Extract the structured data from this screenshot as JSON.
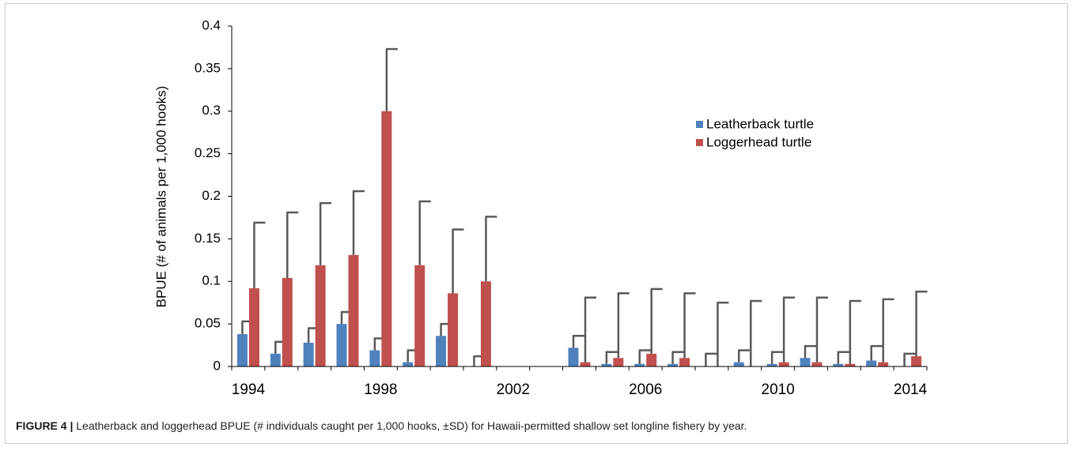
{
  "chart_data": {
    "type": "bar",
    "ylabel": "BPUE (# of animals per 1,000 hooks)",
    "categories": [
      "1994",
      null,
      null,
      null,
      "1998",
      null,
      null,
      null,
      "2002",
      null,
      null,
      null,
      "2006",
      null,
      null,
      null,
      "2010",
      null,
      null,
      null,
      "2014"
    ],
    "series": [
      {
        "name": "Leatherback turtle",
        "color": "#4f81bd",
        "values": [
          0.038,
          0.015,
          0.028,
          0.05,
          0.019,
          0.005,
          0.036,
          0,
          null,
          null,
          0.022,
          0.003,
          0.003,
          0.003,
          0,
          0.005,
          0.003,
          0.01,
          0.003,
          0.007,
          0
        ],
        "errors": [
          0.015,
          0.014,
          0.017,
          0.014,
          0.014,
          0.014,
          0.014,
          0.012,
          null,
          null,
          0.014,
          0.014,
          0.016,
          0.014,
          0.015,
          0.014,
          0.014,
          0.014,
          0.014,
          0.017,
          0.015
        ]
      },
      {
        "name": "Loggerhead turtle",
        "color": "#c0504d",
        "values": [
          0.092,
          0.104,
          0.119,
          0.131,
          0.3,
          0.119,
          0.086,
          0.1,
          null,
          null,
          0.005,
          0.01,
          0.015,
          0.01,
          0,
          0,
          0.005,
          0.005,
          0.003,
          0.005,
          0.012
        ],
        "errors": [
          0.077,
          0.077,
          0.073,
          0.075,
          0.073,
          0.075,
          0.075,
          0.076,
          null,
          null,
          0.076,
          0.076,
          0.076,
          0.076,
          0.075,
          0.077,
          0.076,
          0.076,
          0.074,
          0.074,
          0.076
        ]
      }
    ],
    "error_color": "#595959",
    "ylim": [
      0,
      0.4
    ],
    "yticks": [
      0,
      0.05,
      0.1,
      0.15,
      0.2,
      0.25,
      0.3,
      0.35,
      0.4
    ],
    "grid": false,
    "legend": "upper right"
  },
  "caption": {
    "label": "FIGURE 4 |",
    "text": "Leatherback and loggerhead BPUE (# individuals caught per 1,000 hooks, ±SD) for Hawaii-permitted shallow set longline fishery by year."
  }
}
